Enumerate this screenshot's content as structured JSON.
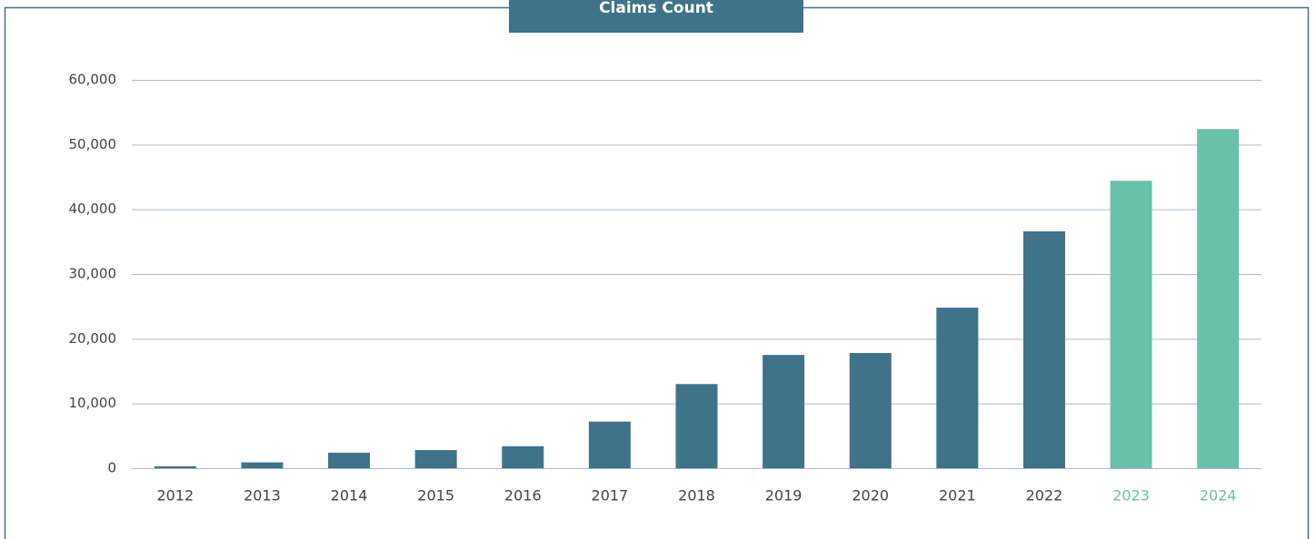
{
  "chart_data": {
    "type": "bar",
    "title": "Claims Count",
    "categories": [
      "2012",
      "2013",
      "2014",
      "2015",
      "2016",
      "2017",
      "2018",
      "2019",
      "2020",
      "2021",
      "2022",
      "2023",
      "2024"
    ],
    "values": [
      300,
      900,
      2400,
      2800,
      3400,
      7200,
      13000,
      17500,
      17800,
      24800,
      36600,
      44400,
      52400
    ],
    "colors": [
      "#3f7389",
      "#3f7389",
      "#3f7389",
      "#3f7389",
      "#3f7389",
      "#3f7389",
      "#3f7389",
      "#3f7389",
      "#3f7389",
      "#3f7389",
      "#3f7389",
      "#69c1aa",
      "#69c1aa"
    ],
    "ylim": [
      0,
      60000
    ],
    "yticks": [
      0,
      {
        "value": 10000,
        "label": "10,000"
      },
      {
        "value": 20000,
        "label": "20,000"
      },
      {
        "value": 30000,
        "label": "30,000"
      },
      {
        "value": 40000,
        "label": "40,000"
      },
      {
        "value": 50000,
        "label": "50,000"
      },
      {
        "value": 60000,
        "label": "60,000"
      }
    ],
    "grid": true
  }
}
